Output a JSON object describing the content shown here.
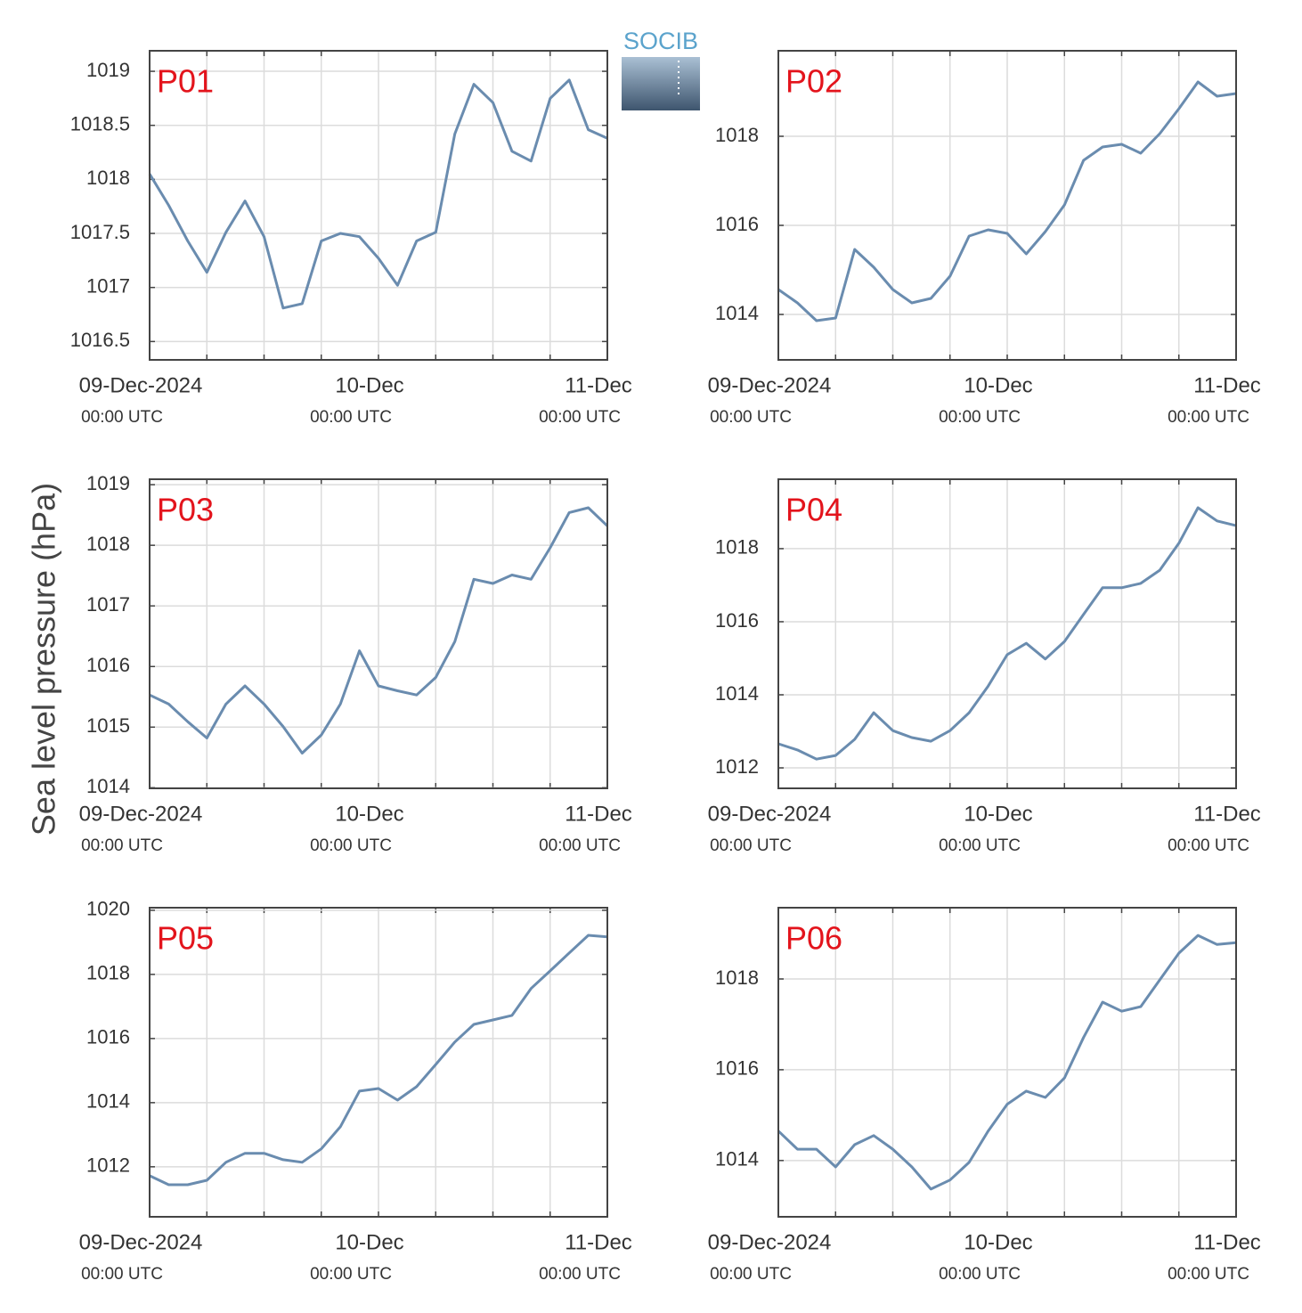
{
  "ylabel": "Sea level pressure (hPa)",
  "logo": "SOCIB",
  "chart_data": [
    {
      "type": "line",
      "title": "P01",
      "color": "#6a8caf",
      "grid": true,
      "x": [
        0,
        2,
        4,
        6,
        8,
        10,
        12,
        14,
        16,
        18,
        20,
        22,
        24,
        26,
        28,
        30,
        32,
        34,
        36,
        38,
        40,
        42,
        44,
        46,
        48
      ],
      "values": [
        1018.05,
        1017.76,
        1017.43,
        1017.14,
        1017.51,
        1017.8,
        1017.47,
        1016.81,
        1016.85,
        1017.43,
        1017.5,
        1017.47,
        1017.27,
        1017.02,
        1017.43,
        1017.51,
        1018.42,
        1018.88,
        1018.71,
        1018.26,
        1018.17,
        1018.75,
        1018.92,
        1018.46,
        1018.38
      ],
      "xlim": [
        0,
        48
      ],
      "ylim": [
        1016.33,
        1019.19
      ],
      "xticks": [
        {
          "value": 0,
          "label": "09-Dec-2024"
        },
        {
          "value": 24,
          "label": "10-Dec"
        },
        {
          "value": 48,
          "label": "11-Dec"
        }
      ],
      "xtick_sublabels": [
        "00:00 UTC",
        "00:00 UTC",
        "00:00 UTC"
      ],
      "xminor": [
        6,
        12,
        18,
        30,
        36,
        42
      ],
      "yticks": [
        1016.5,
        1017,
        1017.5,
        1018,
        1018.5,
        1019
      ]
    },
    {
      "type": "line",
      "title": "P02",
      "color": "#6a8caf",
      "grid": true,
      "x": [
        0,
        2,
        4,
        6,
        8,
        10,
        12,
        14,
        16,
        18,
        20,
        22,
        24,
        26,
        28,
        30,
        32,
        34,
        36,
        38,
        40,
        42,
        44,
        46,
        48
      ],
      "values": [
        1014.56,
        1014.26,
        1013.86,
        1013.92,
        1015.46,
        1015.06,
        1014.56,
        1014.26,
        1014.36,
        1014.86,
        1015.76,
        1015.9,
        1015.82,
        1015.36,
        1015.86,
        1016.46,
        1017.46,
        1017.76,
        1017.82,
        1017.62,
        1018.06,
        1018.62,
        1019.22,
        1018.9,
        1018.96
      ],
      "xlim": [
        0,
        48
      ],
      "ylim": [
        1012.98,
        1019.92
      ],
      "xticks": [
        {
          "value": 0,
          "label": "09-Dec-2024"
        },
        {
          "value": 24,
          "label": "10-Dec"
        },
        {
          "value": 48,
          "label": "11-Dec"
        }
      ],
      "xtick_sublabels": [
        "00:00 UTC",
        "00:00 UTC",
        "00:00 UTC"
      ],
      "xminor": [
        6,
        12,
        18,
        30,
        36,
        42
      ],
      "yticks": [
        1014,
        1016,
        1018
      ]
    },
    {
      "type": "line",
      "title": "P03",
      "color": "#6a8caf",
      "grid": true,
      "x": [
        0,
        2,
        4,
        6,
        8,
        10,
        12,
        14,
        16,
        18,
        20,
        22,
        24,
        26,
        28,
        30,
        32,
        34,
        36,
        38,
        40,
        42,
        44,
        46,
        48
      ],
      "values": [
        1015.53,
        1015.38,
        1015.09,
        1014.82,
        1015.38,
        1015.68,
        1015.38,
        1015.01,
        1014.57,
        1014.87,
        1015.38,
        1016.26,
        1015.68,
        1015.6,
        1015.53,
        1015.82,
        1016.41,
        1017.44,
        1017.37,
        1017.51,
        1017.44,
        1017.96,
        1018.54,
        1018.62,
        1018.32
      ],
      "xlim": [
        0,
        48
      ],
      "ylim": [
        1013.99,
        1019.09
      ],
      "xticks": [
        {
          "value": 0,
          "label": "09-Dec-2024"
        },
        {
          "value": 24,
          "label": "10-Dec"
        },
        {
          "value": 48,
          "label": "11-Dec"
        }
      ],
      "xtick_sublabels": [
        "00:00 UTC",
        "00:00 UTC",
        "00:00 UTC"
      ],
      "xminor": [
        6,
        12,
        18,
        30,
        36,
        42
      ],
      "yticks": [
        1014,
        1015,
        1016,
        1017,
        1018,
        1019
      ]
    },
    {
      "type": "line",
      "title": "P04",
      "color": "#6a8caf",
      "grid": true,
      "x": [
        0,
        2,
        4,
        6,
        8,
        10,
        12,
        14,
        16,
        18,
        20,
        22,
        24,
        26,
        28,
        30,
        32,
        34,
        36,
        38,
        40,
        42,
        44,
        46,
        48
      ],
      "values": [
        1012.66,
        1012.49,
        1012.24,
        1012.34,
        1012.78,
        1013.51,
        1013.02,
        1012.83,
        1012.73,
        1013.02,
        1013.51,
        1014.24,
        1015.1,
        1015.41,
        1014.98,
        1015.46,
        1016.2,
        1016.93,
        1016.93,
        1017.05,
        1017.41,
        1018.15,
        1019.12,
        1018.76,
        1018.63
      ],
      "xlim": [
        0,
        48
      ],
      "ylim": [
        1011.44,
        1019.9
      ],
      "xticks": [
        {
          "value": 0,
          "label": "09-Dec-2024"
        },
        {
          "value": 24,
          "label": "10-Dec"
        },
        {
          "value": 48,
          "label": "11-Dec"
        }
      ],
      "xtick_sublabels": [
        "00:00 UTC",
        "00:00 UTC",
        "00:00 UTC"
      ],
      "xminor": [
        6,
        12,
        18,
        30,
        36,
        42
      ],
      "yticks": [
        1012,
        1014,
        1016,
        1018
      ]
    },
    {
      "type": "line",
      "title": "P05",
      "color": "#6a8caf",
      "grid": true,
      "x": [
        0,
        2,
        4,
        6,
        8,
        10,
        12,
        14,
        16,
        18,
        20,
        22,
        24,
        26,
        28,
        30,
        32,
        34,
        36,
        38,
        40,
        42,
        44,
        46,
        48
      ],
      "values": [
        1011.72,
        1011.44,
        1011.44,
        1011.58,
        1012.14,
        1012.42,
        1012.42,
        1012.22,
        1012.14,
        1012.56,
        1013.25,
        1014.36,
        1014.44,
        1014.08,
        1014.5,
        1015.19,
        1015.89,
        1016.44,
        1016.58,
        1016.72,
        1017.56,
        1018.11,
        1018.67,
        1019.22,
        1019.17
      ],
      "xlim": [
        0,
        48
      ],
      "ylim": [
        1010.44,
        1020.08
      ],
      "xticks": [
        {
          "value": 0,
          "label": "09-Dec-2024"
        },
        {
          "value": 24,
          "label": "10-Dec"
        },
        {
          "value": 48,
          "label": "11-Dec"
        }
      ],
      "xtick_sublabels": [
        "00:00 UTC",
        "00:00 UTC",
        "00:00 UTC"
      ],
      "xminor": [
        6,
        12,
        18,
        30,
        36,
        42
      ],
      "yticks": [
        1012,
        1014,
        1016,
        1018,
        1020
      ]
    },
    {
      "type": "line",
      "title": "P06",
      "color": "#6a8caf",
      "grid": true,
      "x": [
        0,
        2,
        4,
        6,
        8,
        10,
        12,
        14,
        16,
        18,
        20,
        22,
        24,
        26,
        28,
        30,
        32,
        34,
        36,
        38,
        40,
        42,
        44,
        46,
        48
      ],
      "values": [
        1014.65,
        1014.25,
        1014.25,
        1013.86,
        1014.35,
        1014.55,
        1014.25,
        1013.86,
        1013.37,
        1013.57,
        1013.96,
        1014.65,
        1015.24,
        1015.53,
        1015.39,
        1015.82,
        1016.71,
        1017.49,
        1017.29,
        1017.39,
        1017.98,
        1018.57,
        1018.96,
        1018.76,
        1018.8
      ],
      "xlim": [
        0,
        48
      ],
      "ylim": [
        1012.76,
        1019.57
      ],
      "xticks": [
        {
          "value": 0,
          "label": "09-Dec-2024"
        },
        {
          "value": 24,
          "label": "10-Dec"
        },
        {
          "value": 48,
          "label": "11-Dec"
        }
      ],
      "xtick_sublabels": [
        "00:00 UTC",
        "00:00 UTC",
        "00:00 UTC"
      ],
      "xminor": [
        6,
        12,
        18,
        30,
        36,
        42
      ],
      "yticks": [
        1014,
        1016,
        1018
      ]
    }
  ]
}
